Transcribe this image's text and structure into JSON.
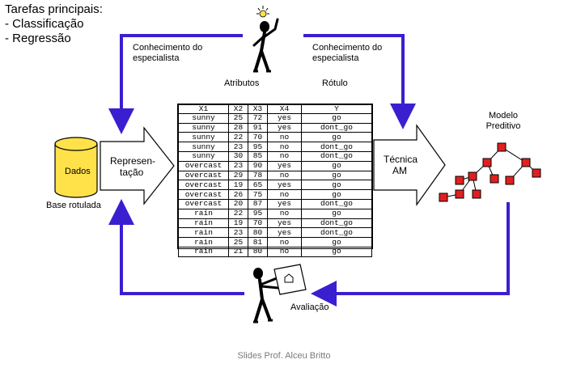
{
  "tasks": {
    "title": "Tarefas principais:",
    "items": [
      "- Classificação",
      "- Regressão"
    ]
  },
  "labels": {
    "expert_left": [
      "Conhecimento do",
      "especialista"
    ],
    "expert_right": [
      "Conhecimento do",
      "especialista"
    ],
    "attributes": "Atributos",
    "label": "Rótulo",
    "data_cylinder": "Dados",
    "base": "Base rotulada",
    "representation": [
      "Represen-",
      "tação"
    ],
    "technique": [
      "Técnica",
      "AM"
    ],
    "model": [
      "Modelo",
      "Preditivo"
    ],
    "evaluation": "Avaliação"
  },
  "table": {
    "headers": [
      "X1",
      "X2",
      "X3",
      "X4",
      "Y"
    ],
    "rows": [
      [
        "sunny",
        "25",
        "72",
        "yes",
        "go"
      ],
      [
        "sunny",
        "28",
        "91",
        "yes",
        "dont_go"
      ],
      [
        "sunny",
        "22",
        "70",
        "no",
        "go"
      ],
      [
        "sunny",
        "23",
        "95",
        "no",
        "dont_go"
      ],
      [
        "sunny",
        "30",
        "85",
        "no",
        "dont_go"
      ],
      [
        "overcast",
        "23",
        "90",
        "yes",
        "go"
      ],
      [
        "overcast",
        "29",
        "78",
        "no",
        "go"
      ],
      [
        "overcast",
        "19",
        "65",
        "yes",
        "go"
      ],
      [
        "overcast",
        "26",
        "75",
        "no",
        "go"
      ],
      [
        "overcast",
        "20",
        "87",
        "yes",
        "dont_go"
      ],
      [
        "rain",
        "22",
        "95",
        "no",
        "go"
      ],
      [
        "rain",
        "19",
        "70",
        "yes",
        "dont_go"
      ],
      [
        "rain",
        "23",
        "80",
        "yes",
        "dont_go"
      ],
      [
        "rain",
        "25",
        "81",
        "no",
        "go"
      ],
      [
        "rain",
        "21",
        "80",
        "no",
        "go"
      ]
    ]
  },
  "footer": "Slides Prof. Alceu Britto",
  "colors": {
    "arrow": "#3a1fd0",
    "node": "#e02020",
    "cylinder": "#ffe14a"
  }
}
